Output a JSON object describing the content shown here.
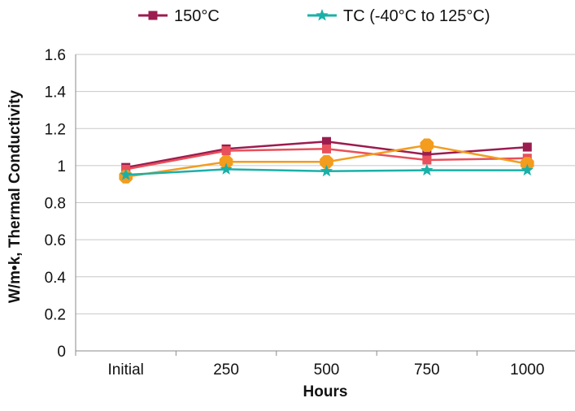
{
  "chart_data": {
    "type": "line",
    "title": "",
    "xlabel": "Hours",
    "ylabel": "W/m•k, Thermal Conductivity",
    "categories": [
      "Initial",
      "250",
      "500",
      "750",
      "1000"
    ],
    "ylim": [
      0,
      1.6
    ],
    "yticks": [
      "0",
      "0.2",
      "0.4",
      "0.6",
      "0.8",
      "1",
      "1.2",
      "1.4",
      "1.6"
    ],
    "ytick_values": [
      0,
      0.2,
      0.4,
      0.6,
      0.8,
      1,
      1.2,
      1.4,
      1.6
    ],
    "grid": true,
    "legend": "top",
    "series": [
      {
        "name": "150°C",
        "color": "#9b1c4f",
        "marker": "square",
        "values": [
          0.99,
          1.09,
          1.13,
          1.06,
          1.1
        ],
        "in_legend": true
      },
      {
        "name": "",
        "color": "#e8505b",
        "marker": "square",
        "values": [
          0.98,
          1.08,
          1.09,
          1.03,
          1.04
        ],
        "in_legend": false
      },
      {
        "name": "",
        "color": "#f39c1e",
        "marker": "octagon",
        "values": [
          0.94,
          1.02,
          1.02,
          1.11,
          1.01
        ],
        "in_legend": false
      },
      {
        "name": "TC (-40°C to 125°C)",
        "color": "#1ab0a8",
        "marker": "star",
        "values": [
          0.95,
          0.98,
          0.97,
          0.975,
          0.975
        ],
        "in_legend": true
      }
    ]
  }
}
